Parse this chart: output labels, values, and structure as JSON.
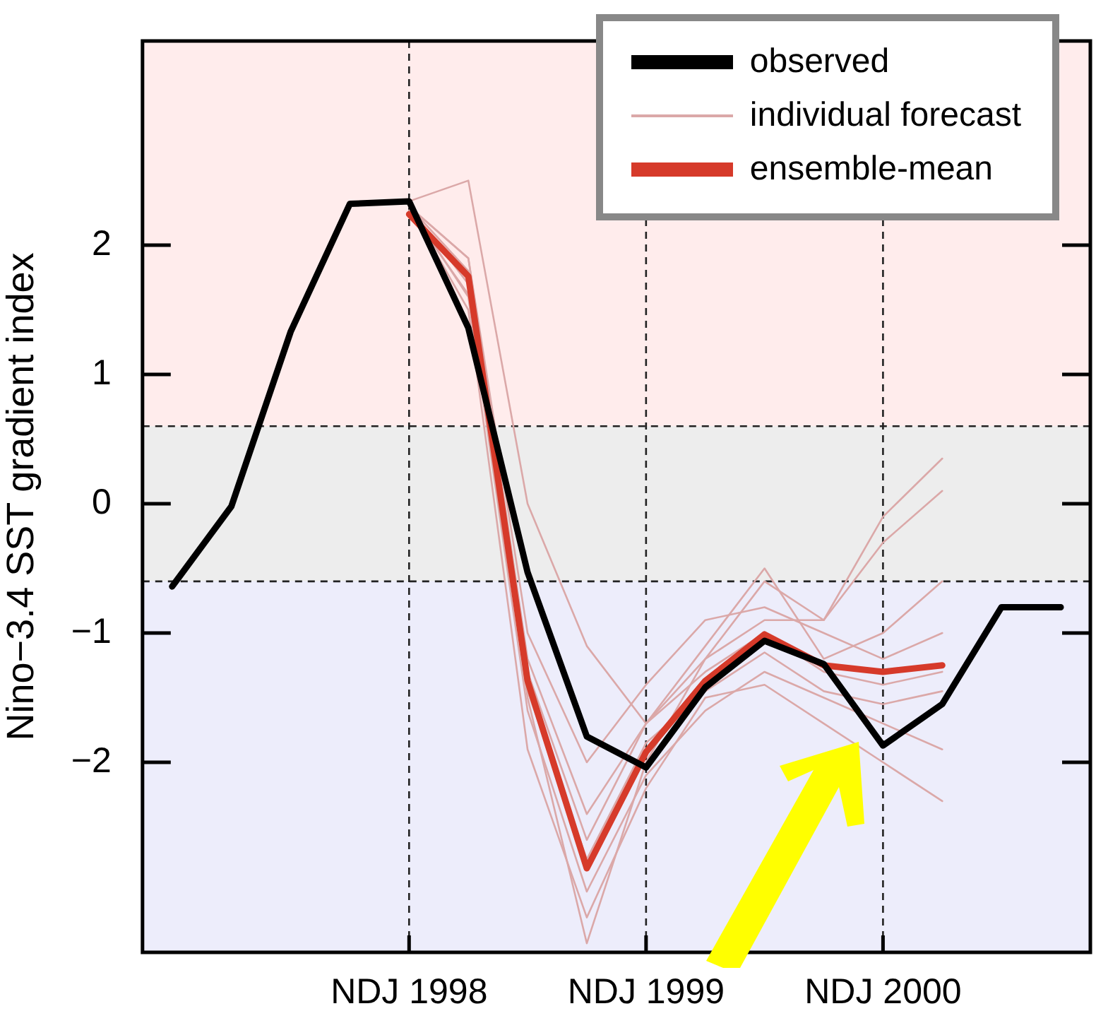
{
  "chart_data": {
    "type": "line",
    "ylabel": "Nino−3.4 SST gradient index",
    "categories": [
      null,
      null,
      null,
      null,
      "NDJ 1998",
      null,
      null,
      null,
      "NDJ 1999",
      null,
      null,
      null,
      "NDJ 2000",
      null,
      null,
      null
    ],
    "ylim": [
      -3.47,
      3.58
    ],
    "yticks": [
      {
        "value": -2,
        "label": "−2"
      },
      {
        "value": -1,
        "label": "−1"
      },
      0,
      1,
      2
    ],
    "grid": "x",
    "legend": "top right",
    "marker": "none",
    "line_style": "solid",
    "bands": [
      {
        "axis": "y",
        "from": 0.6,
        "to": 3.58,
        "color": "#ffecec"
      },
      {
        "axis": "y",
        "from": -0.6,
        "to": 0.6,
        "color": "#ededed"
      },
      {
        "axis": "y",
        "from": -3.47,
        "to": -0.6,
        "color": "#ededfb"
      }
    ],
    "ref_lines": [
      {
        "axis": "y",
        "value": 0.6,
        "line_style": "dashed",
        "color": "#222222"
      },
      {
        "axis": "y",
        "value": -0.6,
        "line_style": "dashed",
        "color": "#222222"
      }
    ],
    "series": [
      {
        "name": "observed",
        "color": "#000000",
        "values": [
          -0.64,
          -0.02,
          1.33,
          2.32,
          2.34,
          1.36,
          -0.53,
          -1.8,
          -2.04,
          -1.42,
          -1.06,
          -1.24,
          -1.87,
          -1.55,
          -0.8,
          -0.8
        ]
      },
      {
        "name": "individual forecast",
        "color": "#dba8a8",
        "values": [
          null,
          null,
          null,
          null,
          2.34,
          2.5,
          0.0,
          -1.1,
          -1.7,
          -1.2,
          -0.6,
          -0.9,
          -0.1,
          0.35,
          null,
          null
        ]
      },
      {
        "color": "#dba8a8",
        "values": [
          null,
          null,
          null,
          null,
          2.3,
          1.9,
          -1.2,
          -2.4,
          -1.7,
          -1.1,
          -0.5,
          -1.2,
          -1.0,
          -0.6,
          null,
          null
        ]
      },
      {
        "color": "#dba8a8",
        "values": [
          null,
          null,
          null,
          null,
          2.3,
          1.8,
          -1.5,
          -3.4,
          -2.0,
          -1.2,
          -0.9,
          -0.9,
          -0.3,
          0.1,
          null,
          null
        ]
      },
      {
        "color": "#dba8a8",
        "values": [
          null,
          null,
          null,
          null,
          2.3,
          1.6,
          -1.6,
          -3.0,
          -2.1,
          -1.6,
          -1.3,
          -1.5,
          -1.7,
          -1.9,
          null,
          null
        ]
      },
      {
        "color": "#dba8a8",
        "values": [
          null,
          null,
          null,
          null,
          2.3,
          1.7,
          -1.3,
          -2.6,
          -1.7,
          -1.3,
          -1.0,
          -1.3,
          -1.4,
          -1.3,
          null,
          null
        ]
      },
      {
        "color": "#dba8a8",
        "values": [
          null,
          null,
          null,
          null,
          2.3,
          1.5,
          -1.9,
          -3.2,
          -2.2,
          -1.5,
          -1.4,
          -1.7,
          -2.0,
          -2.3,
          null,
          null
        ]
      },
      {
        "color": "#dba8a8",
        "values": [
          null,
          null,
          null,
          null,
          2.3,
          1.9,
          -1.0,
          -2.0,
          -1.4,
          -0.9,
          -0.8,
          -1.0,
          -1.2,
          -1.0,
          null,
          null
        ]
      },
      {
        "color": "#dba8a8",
        "values": [
          null,
          null,
          null,
          null,
          2.27,
          1.62,
          -1.45,
          -2.75,
          -1.85,
          -1.45,
          -1.15,
          -1.45,
          -1.55,
          -1.45,
          null,
          null
        ]
      },
      {
        "name": "ensemble-mean",
        "color": "#d63a2a",
        "values": [
          null,
          null,
          null,
          null,
          2.24,
          1.76,
          -1.37,
          -2.82,
          -1.92,
          -1.37,
          -1.01,
          -1.25,
          -1.3,
          -1.25,
          null,
          null
        ]
      }
    ]
  }
}
